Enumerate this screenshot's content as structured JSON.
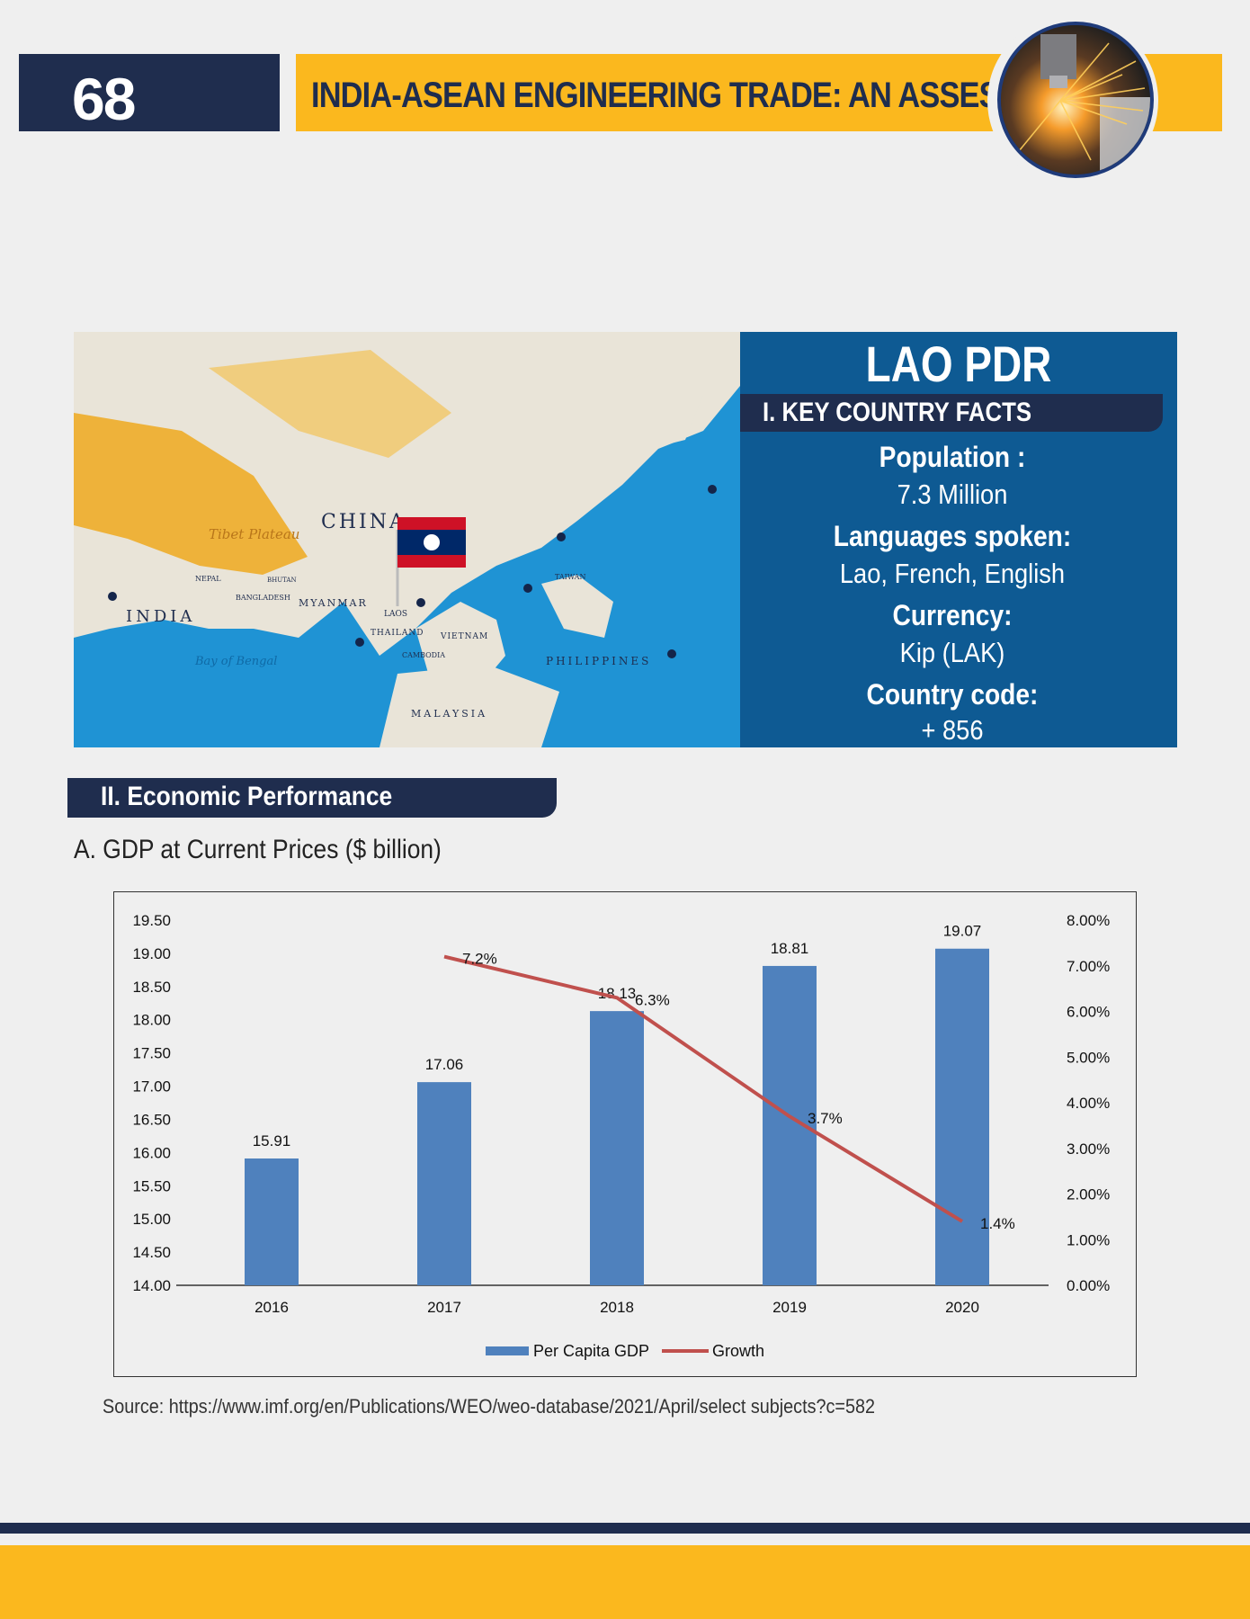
{
  "header": {
    "page_number": "68",
    "title": "INDIA-ASEAN ENGINEERING TRADE: AN ASSESSMENT"
  },
  "map": {
    "labels": [
      "CHINA",
      "INDIA",
      "MYANMAR",
      "LAOS",
      "THAILAND",
      "VIETNAM",
      "CAMBODIA",
      "PHILIPPINES",
      "MALAYSIA",
      "BANGLADESH",
      "NEPAL",
      "BHUTAN",
      "TAIWAN",
      "Tibet Plateau",
      "Bay of Bengal"
    ],
    "flag_colors": {
      "red": "#ce1126",
      "blue": "#002868",
      "white": "#ffffff"
    }
  },
  "country": {
    "name": "LAO PDR",
    "facts_heading": "I. KEY COUNTRY FACTS",
    "facts": [
      {
        "label": "Population :",
        "value": "7.3 Million"
      },
      {
        "label": "Languages spoken:",
        "value": "Lao, French, English"
      },
      {
        "label": "Currency:",
        "value": "Kip (LAK)"
      },
      {
        "label": "Country code:",
        "value": "+ 856"
      }
    ]
  },
  "economic": {
    "section_heading": "II. Economic Performance",
    "sub_heading": "A. GDP at Current Prices ($ billion)",
    "source": "Source: https://www.imf.org/en/Publications/WEO/weo-database/2021/April/select subjects?c=582"
  },
  "chart_data": {
    "type": "bar",
    "categories": [
      "2016",
      "2017",
      "2018",
      "2019",
      "2020"
    ],
    "series": [
      {
        "name": "Per Capita GDP",
        "type": "bar",
        "axis": "left",
        "color": "#4f81bd",
        "values": [
          15.91,
          17.06,
          18.13,
          18.81,
          19.07
        ],
        "labels": [
          "15.91",
          "17.06",
          "18.13",
          "18.81",
          "19.07"
        ]
      },
      {
        "name": "Growth",
        "type": "line",
        "axis": "right",
        "color": "#c0504d",
        "values": [
          null,
          7.2,
          6.3,
          3.7,
          1.4
        ],
        "labels": [
          "",
          "7.2%",
          "6.3%",
          "3.7%",
          "1.4%"
        ]
      }
    ],
    "ylim": [
      14,
      19.5
    ],
    "y_ticks": [
      "14.00",
      "14.50",
      "15.00",
      "15.50",
      "16.00",
      "16.50",
      "17.00",
      "17.50",
      "18.00",
      "18.50",
      "19.00",
      "19.50"
    ],
    "y2lim": [
      0,
      8
    ],
    "y2_ticks": [
      "0.00%",
      "1.00%",
      "2.00%",
      "3.00%",
      "4.00%",
      "5.00%",
      "6.00%",
      "7.00%",
      "8.00%"
    ],
    "legend_position": "bottom",
    "grid": false
  },
  "colors": {
    "navy": "#1f2d4e",
    "gold": "#fbb81e",
    "facts_blue": "#0e5a93",
    "bar": "#4f81bd",
    "line": "#c0504d"
  }
}
